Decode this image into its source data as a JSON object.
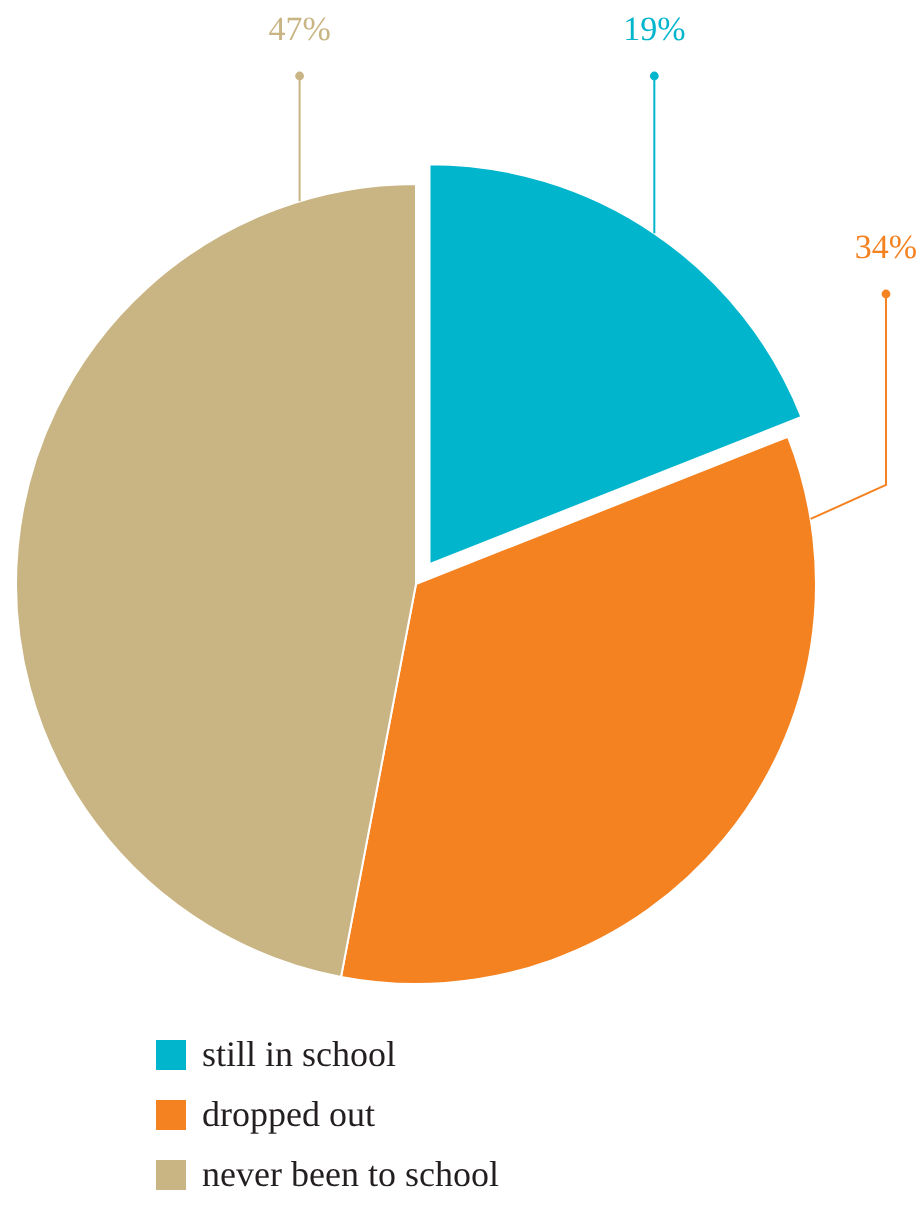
{
  "chart_data": {
    "type": "pie",
    "categories": [
      "still in school",
      "dropped out",
      "never been to school"
    ],
    "values": [
      19,
      34,
      47
    ],
    "colors": [
      "#00b5cc",
      "#f58220",
      "#c9b483"
    ],
    "value_labels": [
      "19%",
      "34%",
      "47%"
    ],
    "legend": "bottom"
  }
}
